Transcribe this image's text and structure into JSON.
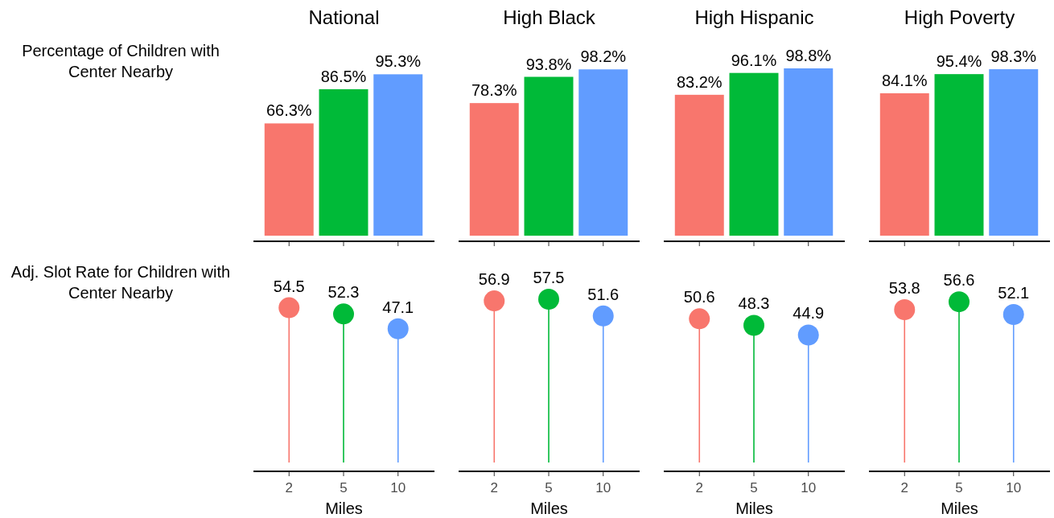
{
  "chart_data": [
    {
      "type": "bar",
      "title": "National",
      "ylabel": "Percentage of Children with Center Nearby",
      "categories": [
        null,
        null,
        null
      ],
      "values": [
        66.3,
        86.5,
        95.3
      ],
      "value_labels": [
        "66.3%",
        "86.5%",
        "95.3%"
      ],
      "colors": [
        "#f8766d",
        "#00ba38",
        "#619cff"
      ]
    },
    {
      "type": "bar",
      "title": "High Black",
      "categories": [
        null,
        null,
        null
      ],
      "values": [
        78.3,
        93.8,
        98.2
      ],
      "value_labels": [
        "78.3%",
        "93.8%",
        "98.2%"
      ],
      "colors": [
        "#f8766d",
        "#00ba38",
        "#619cff"
      ]
    },
    {
      "type": "bar",
      "title": "High Hispanic",
      "categories": [
        null,
        null,
        null
      ],
      "values": [
        83.2,
        96.1,
        98.8
      ],
      "value_labels": [
        "83.2%",
        "96.1%",
        "98.8%"
      ],
      "colors": [
        "#f8766d",
        "#00ba38",
        "#619cff"
      ]
    },
    {
      "type": "bar",
      "title": "High Poverty",
      "categories": [
        null,
        null,
        null
      ],
      "values": [
        84.1,
        95.4,
        98.3
      ],
      "value_labels": [
        "84.1%",
        "95.4%",
        "98.3%"
      ],
      "colors": [
        "#f8766d",
        "#00ba38",
        "#619cff"
      ]
    },
    {
      "type": "lollipop",
      "ylabel": "Adj. Slot Rate for Children with Center Nearby",
      "xlabel": "Miles",
      "categories": [
        "2",
        "5",
        "10"
      ],
      "values": [
        54.5,
        52.3,
        47.1
      ],
      "data_labels": true,
      "colors": [
        "#f8766d",
        "#00ba38",
        "#619cff"
      ],
      "tick_labels": "x"
    },
    {
      "type": "lollipop",
      "xlabel": "Miles",
      "categories": [
        "2",
        "5",
        "10"
      ],
      "values": [
        56.9,
        57.5,
        51.6
      ],
      "data_labels": true,
      "colors": [
        "#f8766d",
        "#00ba38",
        "#619cff"
      ],
      "tick_labels": "x"
    },
    {
      "type": "lollipop",
      "xlabel": "Miles",
      "categories": [
        "2",
        "5",
        "10"
      ],
      "values": [
        50.6,
        48.3,
        44.9
      ],
      "data_labels": true,
      "colors": [
        "#f8766d",
        "#00ba38",
        "#619cff"
      ],
      "tick_labels": "x"
    },
    {
      "type": "lollipop",
      "xlabel": "Miles",
      "categories": [
        "2",
        "5",
        "10"
      ],
      "values": [
        53.8,
        56.6,
        52.1
      ],
      "data_labels": true,
      "colors": [
        "#f8766d",
        "#00ba38",
        "#619cff"
      ],
      "tick_labels": "x"
    }
  ]
}
